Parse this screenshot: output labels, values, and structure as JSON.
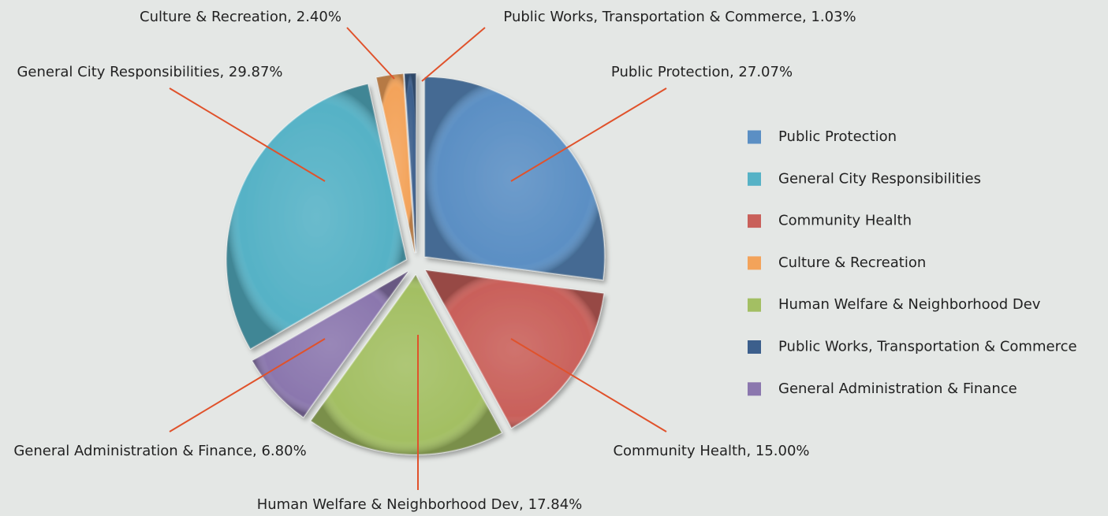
{
  "chart_data": {
    "type": "pie",
    "categories": [
      "Public Protection",
      "Community Health",
      "Human Welfare & Neighborhood Dev",
      "General Administration & Finance",
      "General City Responsibilities",
      "Culture & Recreation",
      "Public Works, Transportation & Commerce"
    ],
    "values": [
      27.07,
      15.0,
      17.84,
      6.8,
      29.87,
      2.4,
      1.03
    ],
    "value_labels": [
      "Public Protection, 27.07%",
      "Community Health, 15.00%",
      "Human Welfare & Neighborhood Dev, 17.84%",
      "General Administration & Finance, 6.80%",
      "General City Responsibilities, 29.87%",
      "Culture & Recreation, 2.40%",
      "Public Works, Transportation & Commerce, 1.03%"
    ],
    "colors": [
      "#5b8fc4",
      "#c9605a",
      "#a3bf63",
      "#8b77ae",
      "#56b2c6",
      "#f3a35a",
      "#3c5f8c"
    ],
    "legend": "right"
  }
}
